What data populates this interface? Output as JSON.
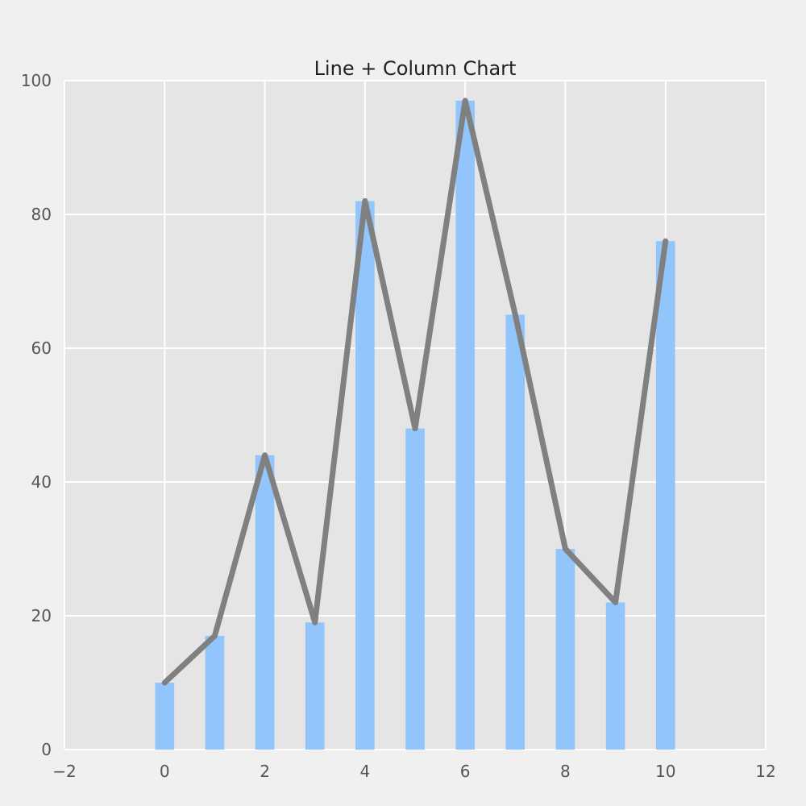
{
  "chart_data": {
    "type": "bar",
    "title": "Line + Column Chart",
    "xlabel": "",
    "ylabel": "",
    "x": [
      0,
      1,
      2,
      3,
      4,
      5,
      6,
      7,
      8,
      9,
      10
    ],
    "bar_values": [
      10,
      17,
      44,
      19,
      82,
      48,
      97,
      65,
      30,
      22,
      76
    ],
    "line_values": [
      10,
      17,
      44,
      19,
      82,
      48,
      97,
      65,
      30,
      22,
      76
    ],
    "xlim": [
      -2,
      12
    ],
    "ylim": [
      0,
      100
    ],
    "xticks": [
      -2,
      0,
      2,
      4,
      6,
      8,
      10,
      12
    ],
    "yticks": [
      0,
      20,
      40,
      60,
      80,
      100
    ],
    "xtick_labels": [
      "−2",
      "0",
      "2",
      "4",
      "6",
      "8",
      "10",
      "12"
    ],
    "ytick_labels": [
      "0",
      "20",
      "40",
      "60",
      "80",
      "100"
    ],
    "grid": true,
    "legend": "none",
    "colors": {
      "bar": "#93c5fd",
      "line": "#808080",
      "plot_background": "#e5e5e5",
      "page_background": "#f0f0f0",
      "grid": "#ffffff"
    }
  }
}
